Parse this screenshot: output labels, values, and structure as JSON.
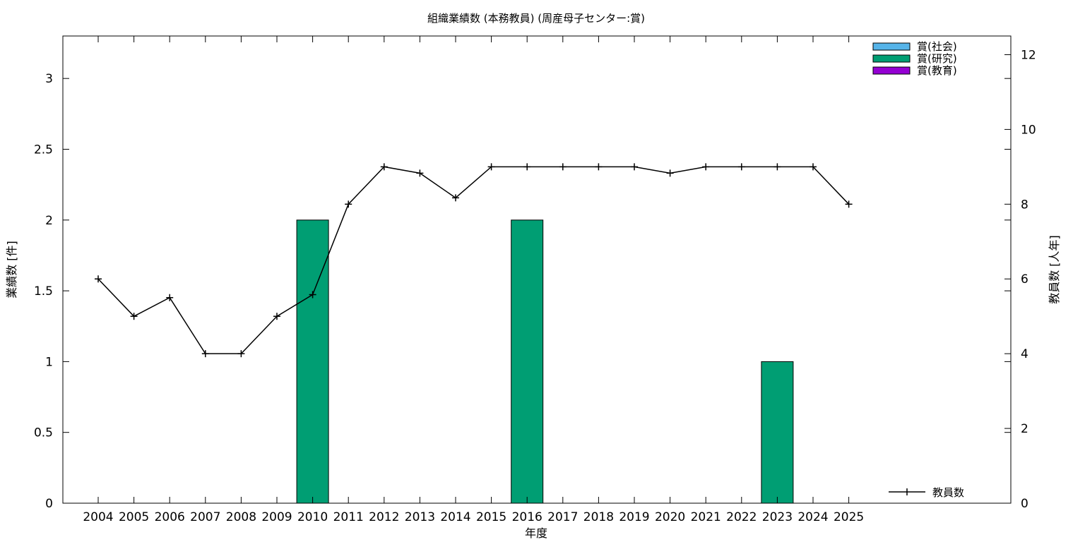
{
  "chart_data": {
    "type": "bar",
    "title": "組織業績数 (本務教員) (周産母子センター:賞)",
    "xlabel": "年度",
    "ylabel": "業績数 [件]",
    "y2label": "教員数 [人年]",
    "categories": [
      "2004",
      "2005",
      "2006",
      "2007",
      "2008",
      "2009",
      "2010",
      "2011",
      "2012",
      "2013",
      "2014",
      "2015",
      "2016",
      "2017",
      "2018",
      "2019",
      "2020",
      "2021",
      "2022",
      "2023",
      "2024",
      "2025"
    ],
    "ylim": [
      0,
      3.3
    ],
    "yticks": [
      0,
      0.5,
      1,
      1.5,
      2,
      2.5,
      3
    ],
    "ytick_labels": [
      "0",
      "0.5",
      "1",
      "1.5",
      "2",
      "2.5",
      "3"
    ],
    "y2lim": [
      0,
      12.5
    ],
    "y2ticks": [
      0,
      2,
      4,
      6,
      8,
      10,
      12
    ],
    "y2tick_labels": [
      "0",
      "2",
      "4",
      "6",
      "8",
      "10",
      "12"
    ],
    "stacked": true,
    "grid": false,
    "bar_legend_position": "top-right",
    "line_legend_position": "bottom-right",
    "series": [
      {
        "name": "賞(社会)",
        "color": "#56b4e9",
        "axis": "left",
        "kind": "bar",
        "values": [
          0,
          0,
          0,
          0,
          0,
          0,
          0,
          0,
          0,
          0,
          0,
          0,
          0,
          0,
          0,
          0,
          0,
          0,
          0,
          0,
          0,
          0
        ]
      },
      {
        "name": "賞(研究)",
        "color": "#009e73",
        "axis": "left",
        "kind": "bar",
        "values": [
          0,
          0,
          0,
          0,
          0,
          0,
          2,
          0,
          0,
          0,
          0,
          0,
          2,
          0,
          0,
          0,
          0,
          0,
          0,
          1,
          0,
          0
        ]
      },
      {
        "name": "賞(教育)",
        "color": "#9400d3",
        "axis": "left",
        "kind": "bar",
        "values": [
          0,
          0,
          0,
          0,
          0,
          0,
          0,
          0,
          0,
          0,
          0,
          0,
          0,
          0,
          0,
          0,
          0,
          0,
          0,
          0,
          0,
          0
        ]
      },
      {
        "name": "教員数",
        "color": "#000000",
        "axis": "right",
        "kind": "line",
        "values": [
          6,
          5,
          5.5,
          4,
          4,
          5,
          5.58,
          8,
          9,
          8.83,
          8.17,
          9,
          9,
          9,
          9,
          9,
          8.83,
          9,
          9,
          9,
          9,
          8
        ]
      }
    ]
  }
}
